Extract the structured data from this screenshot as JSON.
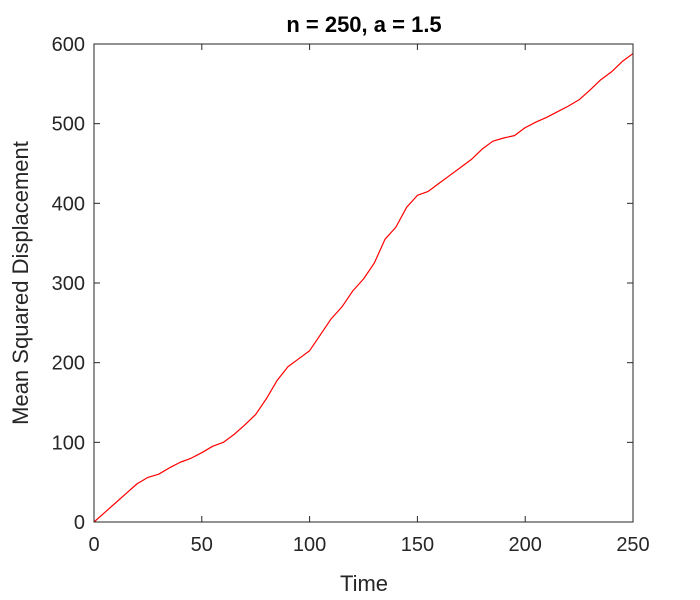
{
  "chart_data": {
    "type": "line",
    "title": "n = 250, a = 1.5",
    "xlabel": "Time",
    "ylabel": "Mean Squared Displacement",
    "xlim": [
      0,
      250
    ],
    "ylim": [
      0,
      600
    ],
    "xticks": [
      0,
      50,
      100,
      150,
      200,
      250
    ],
    "yticks": [
      0,
      100,
      200,
      300,
      400,
      500,
      600
    ],
    "xtick_labels": [
      "0",
      "50",
      "100",
      "150",
      "200",
      "250"
    ],
    "ytick_labels": [
      "0",
      "100",
      "200",
      "300",
      "400",
      "500",
      "600"
    ],
    "grid": false,
    "box": true,
    "series": [
      {
        "color": "#ff0000",
        "x": [
          0,
          5,
          10,
          15,
          20,
          25,
          30,
          35,
          40,
          45,
          50,
          55,
          60,
          65,
          70,
          75,
          80,
          85,
          90,
          95,
          100,
          105,
          110,
          115,
          120,
          125,
          130,
          135,
          140,
          145,
          150,
          155,
          160,
          165,
          170,
          175,
          180,
          185,
          190,
          195,
          200,
          205,
          210,
          215,
          220,
          225,
          230,
          235,
          240,
          245,
          250
        ],
        "values": [
          0,
          12,
          24,
          36,
          48,
          56,
          60,
          68,
          75,
          80,
          87,
          95,
          100,
          110,
          122,
          135,
          155,
          178,
          195,
          205,
          215,
          235,
          255,
          270,
          290,
          305,
          325,
          355,
          370,
          395,
          410,
          415,
          425,
          435,
          445,
          455,
          468,
          478,
          482,
          485,
          495,
          502,
          508,
          515,
          522,
          530,
          542,
          555,
          565,
          578,
          588
        ]
      }
    ]
  }
}
